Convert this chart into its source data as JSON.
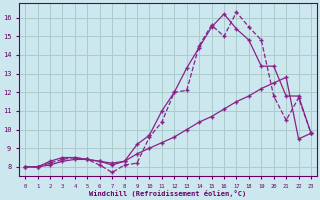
{
  "bg_color": "#cce8ee",
  "grid_color": "#aacccc",
  "line_color": "#882288",
  "xlim": [
    -0.5,
    23.5
  ],
  "ylim": [
    7.5,
    16.8
  ],
  "xlabel": "Windchill (Refroidissement éolien,°C)",
  "xticks": [
    0,
    1,
    2,
    3,
    4,
    5,
    6,
    7,
    8,
    9,
    10,
    11,
    12,
    13,
    14,
    15,
    16,
    17,
    18,
    19,
    20,
    21,
    22,
    23
  ],
  "yticks": [
    8,
    9,
    10,
    11,
    12,
    13,
    14,
    15,
    16
  ],
  "series1_x": [
    0,
    1,
    2,
    3,
    4,
    5,
    6,
    7,
    8,
    9,
    10,
    11,
    12,
    13,
    14,
    15,
    16,
    17,
    18,
    19,
    20,
    21,
    22,
    23
  ],
  "series1_y": [
    8.0,
    8.0,
    8.2,
    8.4,
    8.5,
    8.4,
    8.1,
    7.7,
    8.1,
    8.2,
    9.6,
    10.4,
    12.0,
    12.1,
    14.5,
    15.6,
    15.0,
    16.3,
    15.5,
    14.8,
    11.8,
    10.5,
    11.7,
    9.8
  ],
  "series2_x": [
    0,
    1,
    2,
    3,
    4,
    5,
    6,
    7,
    8,
    9,
    10,
    11,
    12,
    13,
    14,
    15,
    16,
    17,
    18,
    19,
    20,
    21,
    22,
    23
  ],
  "series2_y": [
    8.0,
    8.0,
    8.3,
    8.5,
    8.5,
    8.4,
    8.3,
    8.1,
    8.3,
    9.2,
    9.7,
    11.0,
    12.0,
    13.3,
    14.4,
    15.5,
    16.2,
    15.4,
    14.8,
    13.4,
    13.4,
    11.8,
    11.8,
    9.8
  ],
  "series3_x": [
    0,
    1,
    2,
    3,
    4,
    5,
    6,
    7,
    8,
    9,
    10,
    11,
    12,
    13,
    14,
    15,
    16,
    17,
    18,
    19,
    20,
    21,
    22,
    23
  ],
  "series3_y": [
    8.0,
    8.0,
    8.1,
    8.3,
    8.4,
    8.4,
    8.3,
    8.2,
    8.3,
    8.7,
    9.0,
    9.3,
    9.6,
    10.0,
    10.4,
    10.7,
    11.1,
    11.5,
    11.8,
    12.2,
    12.5,
    12.8,
    9.5,
    9.8
  ],
  "font_color": "#660066",
  "markersize": 2.0
}
